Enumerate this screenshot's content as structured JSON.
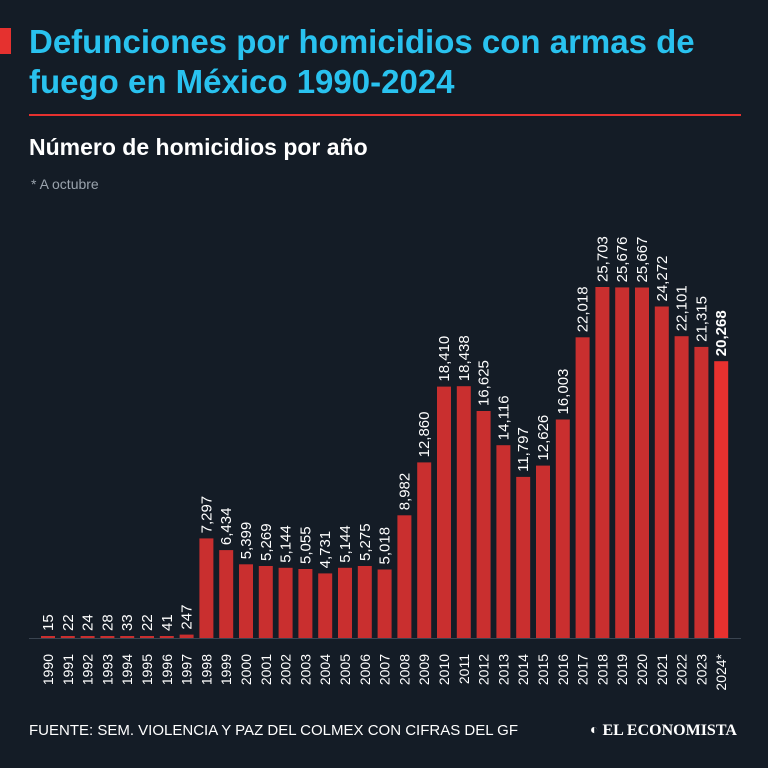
{
  "title": "Defunciones por homicidios con armas de fuego en México 1990-2024",
  "subtitle": "Número de homicidios por año",
  "note": "* A octubre",
  "source": "FUENTE: SEM. VIOLENCIA Y PAZ DEL COLMEX CON CIFRAS DEL GF",
  "brand": "EL ECONOMISTA",
  "colors": {
    "title": "#29c2ef",
    "bar": "#c92f2f",
    "bar_highlight": "#e8312f",
    "background": "#141c26",
    "rule": "#e5312f"
  },
  "chart_data": {
    "type": "bar",
    "title": "Número de homicidios por año",
    "xlabel": "",
    "ylabel": "",
    "ylim": [
      0,
      25703
    ],
    "categories": [
      "1990",
      "1991",
      "1992",
      "1993",
      "1994",
      "1995",
      "1996",
      "1997",
      "1998",
      "1999",
      "2000",
      "2001",
      "2002",
      "2003",
      "2004",
      "2005",
      "2006",
      "2007",
      "2008",
      "2009",
      "2010",
      "2011",
      "2012",
      "2013",
      "2014",
      "2015",
      "2016",
      "2017",
      "2018",
      "2019",
      "2020",
      "2021",
      "2022",
      "2023",
      "2024*"
    ],
    "values": [
      15,
      22,
      24,
      28,
      33,
      22,
      41,
      247,
      7297,
      6434,
      5399,
      5269,
      5144,
      5055,
      4731,
      5144,
      5275,
      5018,
      8982,
      12860,
      18410,
      18438,
      16625,
      14116,
      11797,
      12626,
      16003,
      22018,
      25703,
      25676,
      25667,
      24272,
      22101,
      21315,
      20268
    ],
    "value_labels": [
      "15",
      "22",
      "24",
      "28",
      "33",
      "22",
      "41",
      "247",
      "7,297",
      "6,434",
      "5,399",
      "5,269",
      "5,144",
      "5,055",
      "4,731",
      "5,144",
      "5,275",
      "5,018",
      "8,982",
      "12,860",
      "18,410",
      "18,438",
      "16,625",
      "14,116",
      "11,797",
      "12,626",
      "16,003",
      "22,018",
      "25,703",
      "25,676",
      "25,667",
      "24,272",
      "22,101",
      "21,315",
      "20,268"
    ],
    "highlight_index": 34
  }
}
